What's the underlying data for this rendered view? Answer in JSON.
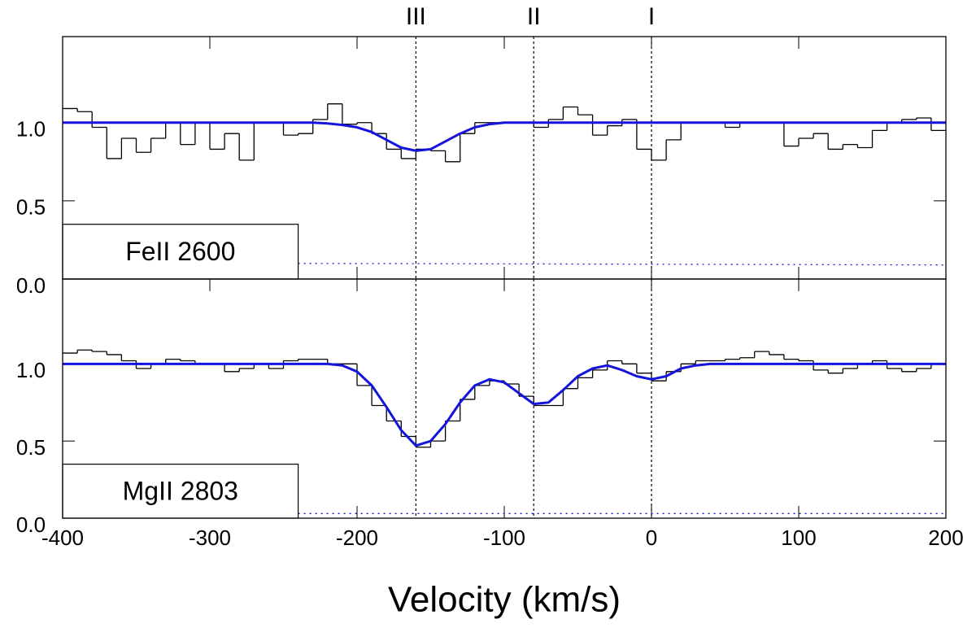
{
  "chart_data": [
    {
      "type": "step",
      "label": "FeII 2600",
      "components": [
        {
          "label": "III",
          "value": -160
        },
        {
          "label": "II",
          "value": -80
        },
        {
          "label": "I",
          "value": 0
        }
      ],
      "xlim": [
        -400,
        200
      ],
      "ylim": [
        0,
        1.55
      ],
      "yticks": [
        {
          "value": 0,
          "label": "0.0"
        },
        0.5,
        {
          "value": 1,
          "label": "1.0"
        }
      ],
      "bins": [
        -400,
        -390,
        -380,
        -370,
        -360,
        -350,
        -340,
        -330,
        -320,
        -310,
        -300,
        -290,
        -280,
        -270,
        -260,
        -250,
        -240,
        -230,
        -220,
        -210,
        -200,
        -190,
        -180,
        -170,
        -160,
        -150,
        -140,
        -130,
        -120,
        -110,
        -100,
        -90,
        -80,
        -70,
        -60,
        -50,
        -40,
        -30,
        -20,
        -10,
        0,
        10,
        20,
        30,
        40,
        50,
        60,
        70,
        80,
        90,
        100,
        110,
        120,
        130,
        140,
        150,
        160,
        170,
        180,
        190,
        200
      ],
      "spectrum": {
        "color": "#000000",
        "values": [
          1.09,
          1.07,
          0.97,
          0.77,
          0.9,
          0.81,
          0.9,
          1.0,
          0.86,
          1.0,
          0.83,
          0.93,
          0.76,
          1.0,
          1.0,
          0.92,
          0.93,
          1.02,
          1.12,
          0.99,
          1.0,
          0.93,
          0.83,
          0.77,
          0.83,
          0.82,
          0.75,
          0.93,
          1.0,
          1.0,
          1.0,
          1.0,
          0.97,
          1.02,
          1.1,
          1.05,
          0.92,
          0.98,
          1.02,
          0.83,
          0.76,
          0.89,
          1.0,
          1.0,
          1.0,
          0.97,
          1.0,
          1.0,
          1.0,
          0.85,
          0.9,
          0.93,
          0.83,
          0.86,
          0.84,
          0.95,
          1.0,
          1.02,
          1.03,
          0.95
        ]
      },
      "model": {
        "color": "#1414dc",
        "x": [
          -400,
          -230,
          -220,
          -210,
          -200,
          -190,
          -180,
          -170,
          -160,
          -150,
          -140,
          -130,
          -120,
          -110,
          -100,
          200
        ],
        "values": [
          1,
          1,
          0.995,
          0.985,
          0.97,
          0.94,
          0.89,
          0.84,
          0.82,
          0.83,
          0.88,
          0.93,
          0.97,
          0.99,
          1,
          1
        ]
      },
      "error": {
        "color": "#1414dc",
        "x": [
          -240,
          200
        ],
        "values": [
          0.1,
          0.09
        ]
      }
    },
    {
      "type": "step",
      "label": "MgII 2803",
      "xlim": [
        -400,
        200
      ],
      "ylim": [
        0,
        1.55
      ],
      "xticks": [
        -400,
        -300,
        -200,
        -100,
        0,
        100,
        200
      ],
      "xlabel": "Velocity (km/s)",
      "yticks": [
        {
          "value": 0,
          "label": "0.0"
        },
        0.5,
        {
          "value": 1,
          "label": "1.0"
        }
      ],
      "bins": [
        -400,
        -390,
        -380,
        -370,
        -360,
        -350,
        -340,
        -330,
        -320,
        -310,
        -300,
        -290,
        -280,
        -270,
        -260,
        -250,
        -240,
        -230,
        -220,
        -210,
        -200,
        -190,
        -180,
        -170,
        -160,
        -150,
        -140,
        -130,
        -120,
        -110,
        -100,
        -90,
        -80,
        -70,
        -60,
        -50,
        -40,
        -30,
        -20,
        -10,
        0,
        10,
        20,
        30,
        40,
        50,
        60,
        70,
        80,
        90,
        100,
        110,
        120,
        130,
        140,
        150,
        160,
        170,
        180,
        190,
        200
      ],
      "spectrum": {
        "color": "#000000",
        "values": [
          1.07,
          1.09,
          1.08,
          1.06,
          1.02,
          0.97,
          1.0,
          1.03,
          1.02,
          1.0,
          1.0,
          0.95,
          0.97,
          1.0,
          0.97,
          1.02,
          1.03,
          1.03,
          1.0,
          1.0,
          0.86,
          0.73,
          0.63,
          0.53,
          0.46,
          0.5,
          0.63,
          0.77,
          0.86,
          0.89,
          0.87,
          0.79,
          0.73,
          0.73,
          0.84,
          0.91,
          0.96,
          1.02,
          1.0,
          0.94,
          0.89,
          0.95,
          1.0,
          1.02,
          1.02,
          1.03,
          1.04,
          1.08,
          1.06,
          1.03,
          1.02,
          0.96,
          0.94,
          0.97,
          1.0,
          1.02,
          0.97,
          0.95,
          0.97,
          1.0
        ]
      },
      "model": {
        "color": "#1414dc",
        "x": [
          -400,
          -230,
          -220,
          -210,
          -200,
          -190,
          -180,
          -170,
          -160,
          -150,
          -140,
          -130,
          -120,
          -110,
          -100,
          -90,
          -80,
          -70,
          -60,
          -50,
          -40,
          -30,
          -20,
          -10,
          0,
          10,
          20,
          30,
          40,
          200
        ],
        "values": [
          1,
          1,
          1.0,
          0.99,
          0.95,
          0.86,
          0.72,
          0.57,
          0.47,
          0.5,
          0.61,
          0.75,
          0.86,
          0.9,
          0.88,
          0.81,
          0.74,
          0.75,
          0.83,
          0.92,
          0.97,
          0.99,
          0.96,
          0.92,
          0.9,
          0.92,
          0.97,
          0.99,
          1.0,
          1
        ]
      },
      "error": {
        "color": "#1414dc",
        "x": [
          -240,
          200
        ],
        "values": [
          0.03,
          0.03
        ]
      }
    }
  ]
}
